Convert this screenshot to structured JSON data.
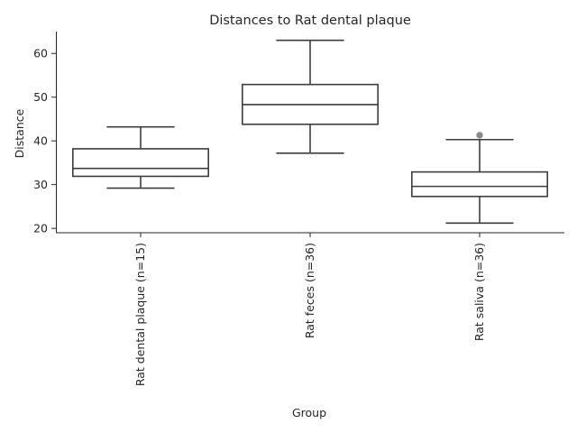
{
  "chart_data": {
    "type": "box",
    "title": "Distances to Rat dental plaque",
    "xlabel": "Group",
    "ylabel": "Distance",
    "ylim": [
      19,
      65
    ],
    "yticks": [
      20,
      30,
      40,
      50,
      60
    ],
    "grid": false,
    "categories": [
      "Rat dental plaque (n=15)",
      "Rat feces (n=36)",
      "Rat saliva (n=36)"
    ],
    "boxes": [
      {
        "whisker_low": 29.2,
        "q1": 31.9,
        "median": 33.7,
        "q3": 38.2,
        "whisker_high": 43.2,
        "outliers": []
      },
      {
        "whisker_low": 37.2,
        "q1": 43.8,
        "median": 48.3,
        "q3": 52.9,
        "whisker_high": 63.0,
        "outliers": []
      },
      {
        "whisker_low": 21.2,
        "q1": 27.3,
        "median": 29.6,
        "q3": 32.9,
        "whisker_high": 40.3,
        "outliers": [
          41.3
        ]
      }
    ]
  }
}
